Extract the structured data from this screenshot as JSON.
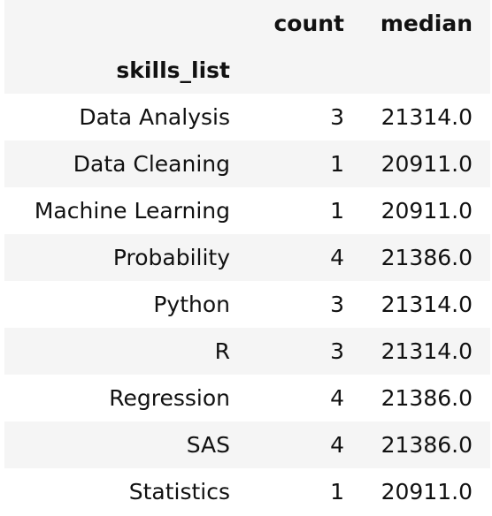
{
  "table": {
    "columns": [
      "count",
      "median"
    ],
    "index_name": "skills_list",
    "rows": [
      {
        "index": "Data Analysis",
        "count": "3",
        "median": "21314.0"
      },
      {
        "index": "Data Cleaning",
        "count": "1",
        "median": "20911.0"
      },
      {
        "index": "Machine Learning",
        "count": "1",
        "median": "20911.0"
      },
      {
        "index": "Probability",
        "count": "4",
        "median": "21386.0"
      },
      {
        "index": "Python",
        "count": "3",
        "median": "21314.0"
      },
      {
        "index": "R",
        "count": "3",
        "median": "21314.0"
      },
      {
        "index": "Regression",
        "count": "4",
        "median": "21386.0"
      },
      {
        "index": "SAS",
        "count": "4",
        "median": "21386.0"
      },
      {
        "index": "Statistics",
        "count": "1",
        "median": "20911.0"
      }
    ]
  },
  "colors": {
    "stripe": "#f5f5f5",
    "background": "#ffffff",
    "text": "#111111"
  }
}
